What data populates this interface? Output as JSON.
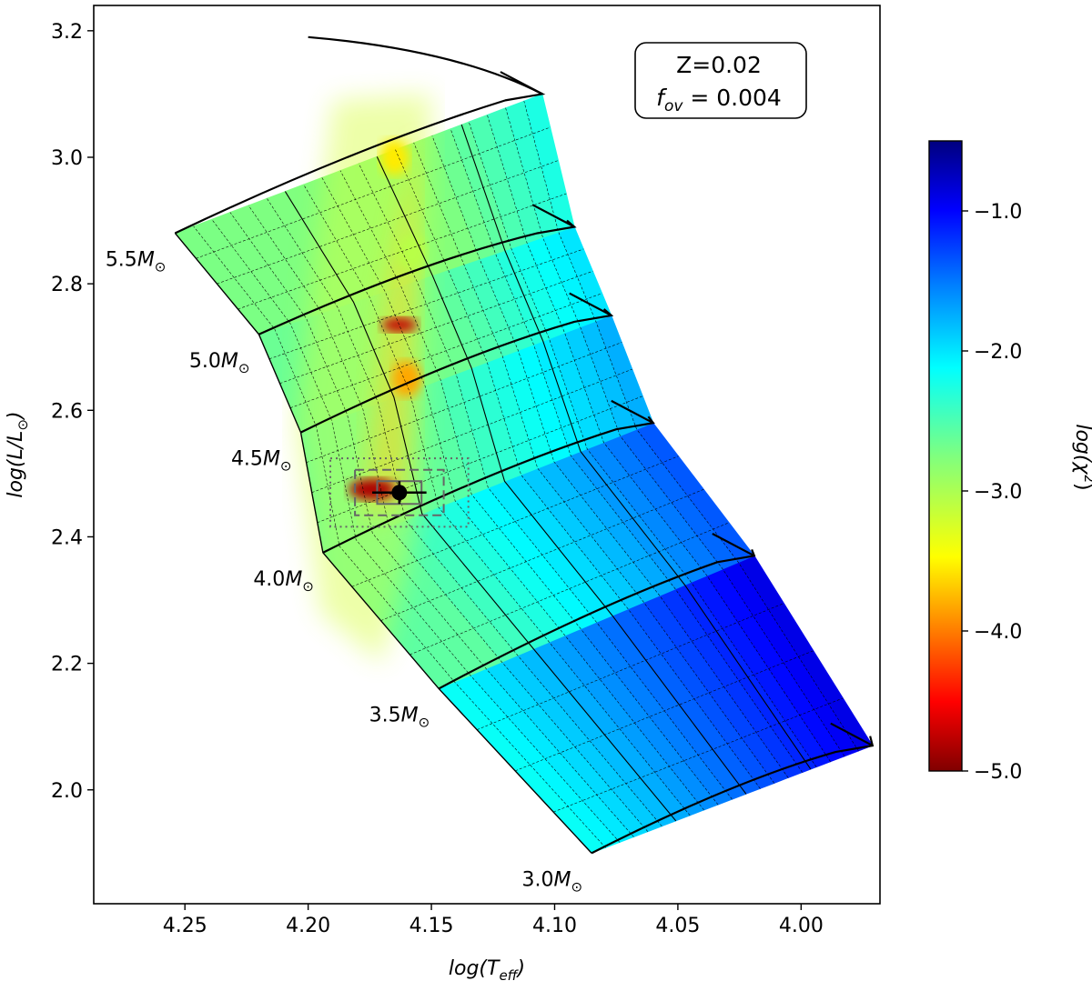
{
  "chart_data": {
    "type": "heatmap",
    "subtype": "HR diagram with evolutionary tracks colored by chi-square",
    "xlabel": "log(T_eff)",
    "xlabel_main": "log(T",
    "xlabel_sub": "eff",
    "ylabel": "log(L/L⊙)",
    "ylabel_main": "log(L/L",
    "ylabel_sub": "⊙",
    "xlim": [
      4.287,
      3.968
    ],
    "ylim": [
      1.82,
      3.24
    ],
    "x_inverted": true,
    "xticks": [
      4.25,
      4.2,
      4.15,
      4.1,
      4.05,
      4.0
    ],
    "xtick_labels": [
      "4.25",
      "4.20",
      "4.15",
      "4.10",
      "4.05",
      "4.00"
    ],
    "yticks": [
      2.0,
      2.2,
      2.4,
      2.6,
      2.8,
      3.0,
      3.2
    ],
    "ytick_labels": [
      "2.0",
      "2.2",
      "2.4",
      "2.6",
      "2.8",
      "3.0",
      "3.2"
    ],
    "annotation": {
      "line1": "Z=0.02",
      "line2_main": "f",
      "line2_sub": "ov",
      "line2_value": " = 0.004"
    },
    "colorbar": {
      "label": "log(χ²)",
      "label_main": "log(χ",
      "label_sup": "2",
      "min": -5.0,
      "max": -0.5,
      "ticks": [
        -1.0,
        -2.0,
        -3.0,
        -4.0,
        -5.0
      ],
      "tick_labels": [
        "−1.0",
        "−2.0",
        "−3.0",
        "−4.0",
        "−5.0"
      ],
      "colormap": "jet"
    },
    "tracks": [
      {
        "mass": 3.0,
        "label": "3.0M⊙",
        "label_main": "3.0M",
        "zams": [
          4.085,
          1.9
        ],
        "tams": [
          3.971,
          2.07
        ],
        "end": [
          3.972,
          2.085
        ]
      },
      {
        "mass": 3.5,
        "label": "3.5M⊙",
        "label_main": "3.5M",
        "zams": [
          4.147,
          2.16
        ],
        "tams": [
          4.019,
          2.37
        ],
        "end": [
          4.02,
          2.38
        ]
      },
      {
        "mass": 4.0,
        "label": "4.0M⊙",
        "label_main": "4.0M",
        "zams": [
          4.194,
          2.375
        ],
        "tams": [
          4.06,
          2.58
        ],
        "end": [
          4.062,
          2.59
        ]
      },
      {
        "mass": 4.5,
        "label": "4.5M⊙",
        "label_main": "4.5M",
        "zams": [
          4.203,
          2.565
        ],
        "tams": [
          4.077,
          2.75
        ],
        "end": [
          4.08,
          2.76
        ]
      },
      {
        "mass": 5.0,
        "label": "5.0M⊙",
        "label_main": "5.0M",
        "zams": [
          4.22,
          2.72
        ],
        "tams": [
          4.092,
          2.89
        ],
        "end": [
          4.095,
          2.9
        ]
      },
      {
        "mass": 5.5,
        "label": "5.5M⊙",
        "label_main": "5.5M",
        "zams": [
          4.254,
          2.88
        ],
        "tams": [
          4.105,
          3.1
        ],
        "end": [
          4.11,
          3.11
        ]
      }
    ],
    "star": {
      "logTeff": 4.163,
      "logL": 2.47,
      "err_logTeff": 0.011,
      "err_logL": 0.018
    },
    "boxes": [
      {
        "style": "solid",
        "dx": 0.009,
        "dy": 0.018
      },
      {
        "style": "dashed",
        "dx": 0.018,
        "dy": 0.036
      },
      {
        "style": "dotted",
        "dx": 0.028,
        "dy": 0.054
      }
    ],
    "chi2_minima": [
      {
        "logTeff": 4.174,
        "logL": 2.475,
        "value": -4.8
      },
      {
        "logTeff": 4.163,
        "logL": 2.735,
        "value": -4.7
      },
      {
        "logTeff": 4.16,
        "logL": 2.65,
        "value": -3.7
      },
      {
        "logTeff": 4.165,
        "logL": 3.0,
        "value": -3.4
      },
      {
        "logTeff": 4.158,
        "logL": 2.85,
        "value": -3.0
      }
    ],
    "grid": false,
    "legend": "none"
  }
}
